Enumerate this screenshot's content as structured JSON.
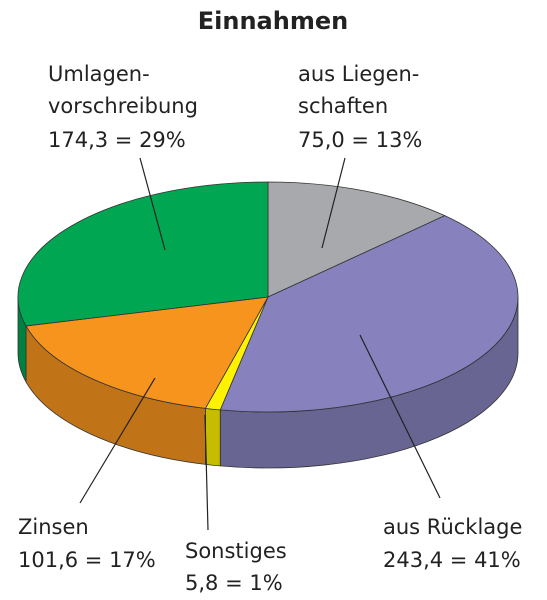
{
  "chart_data": {
    "type": "pie3d",
    "title": "Einnahmen",
    "categories": [
      [
        "aus Liegen-",
        "schaften"
      ],
      [
        "aus Rücklage"
      ],
      [
        "Sonstiges"
      ],
      [
        "Zinsen"
      ],
      [
        "Umlagen-",
        "vorschreibung"
      ]
    ],
    "values": [
      75.0,
      243.4,
      5.8,
      101.6,
      174.3
    ],
    "value_labels": [
      "75,0 = 13%",
      "243,4 = 41%",
      "5,8 = 1%",
      "101,6 = 17%",
      "174,3 = 29%"
    ],
    "colors": [
      "#a7a9ac",
      "#8781bd",
      "#fff200",
      "#f7941d",
      "#00a651"
    ]
  }
}
